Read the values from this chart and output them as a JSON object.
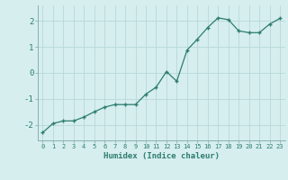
{
  "x": [
    0,
    1,
    2,
    3,
    4,
    5,
    6,
    7,
    8,
    9,
    10,
    11,
    12,
    13,
    14,
    15,
    16,
    17,
    18,
    19,
    20,
    21,
    22,
    23
  ],
  "y": [
    -2.3,
    -1.95,
    -1.85,
    -1.85,
    -1.7,
    -1.5,
    -1.32,
    -1.22,
    -1.22,
    -1.22,
    -0.82,
    -0.55,
    0.05,
    -0.32,
    0.88,
    1.3,
    1.75,
    2.12,
    2.05,
    1.62,
    1.55,
    1.55,
    1.88,
    2.1
  ],
  "xlabel": "Humidex (Indice chaleur)",
  "ylim": [
    -2.6,
    2.6
  ],
  "xlim": [
    -0.5,
    23.5
  ],
  "line_color": "#2d7d6e",
  "bg_color": "#d6eeee",
  "grid_color": "#b8d8d8",
  "tick_color": "#2d7d6e",
  "label_color": "#2d7d6e",
  "spine_color": "#8ab0b0"
}
